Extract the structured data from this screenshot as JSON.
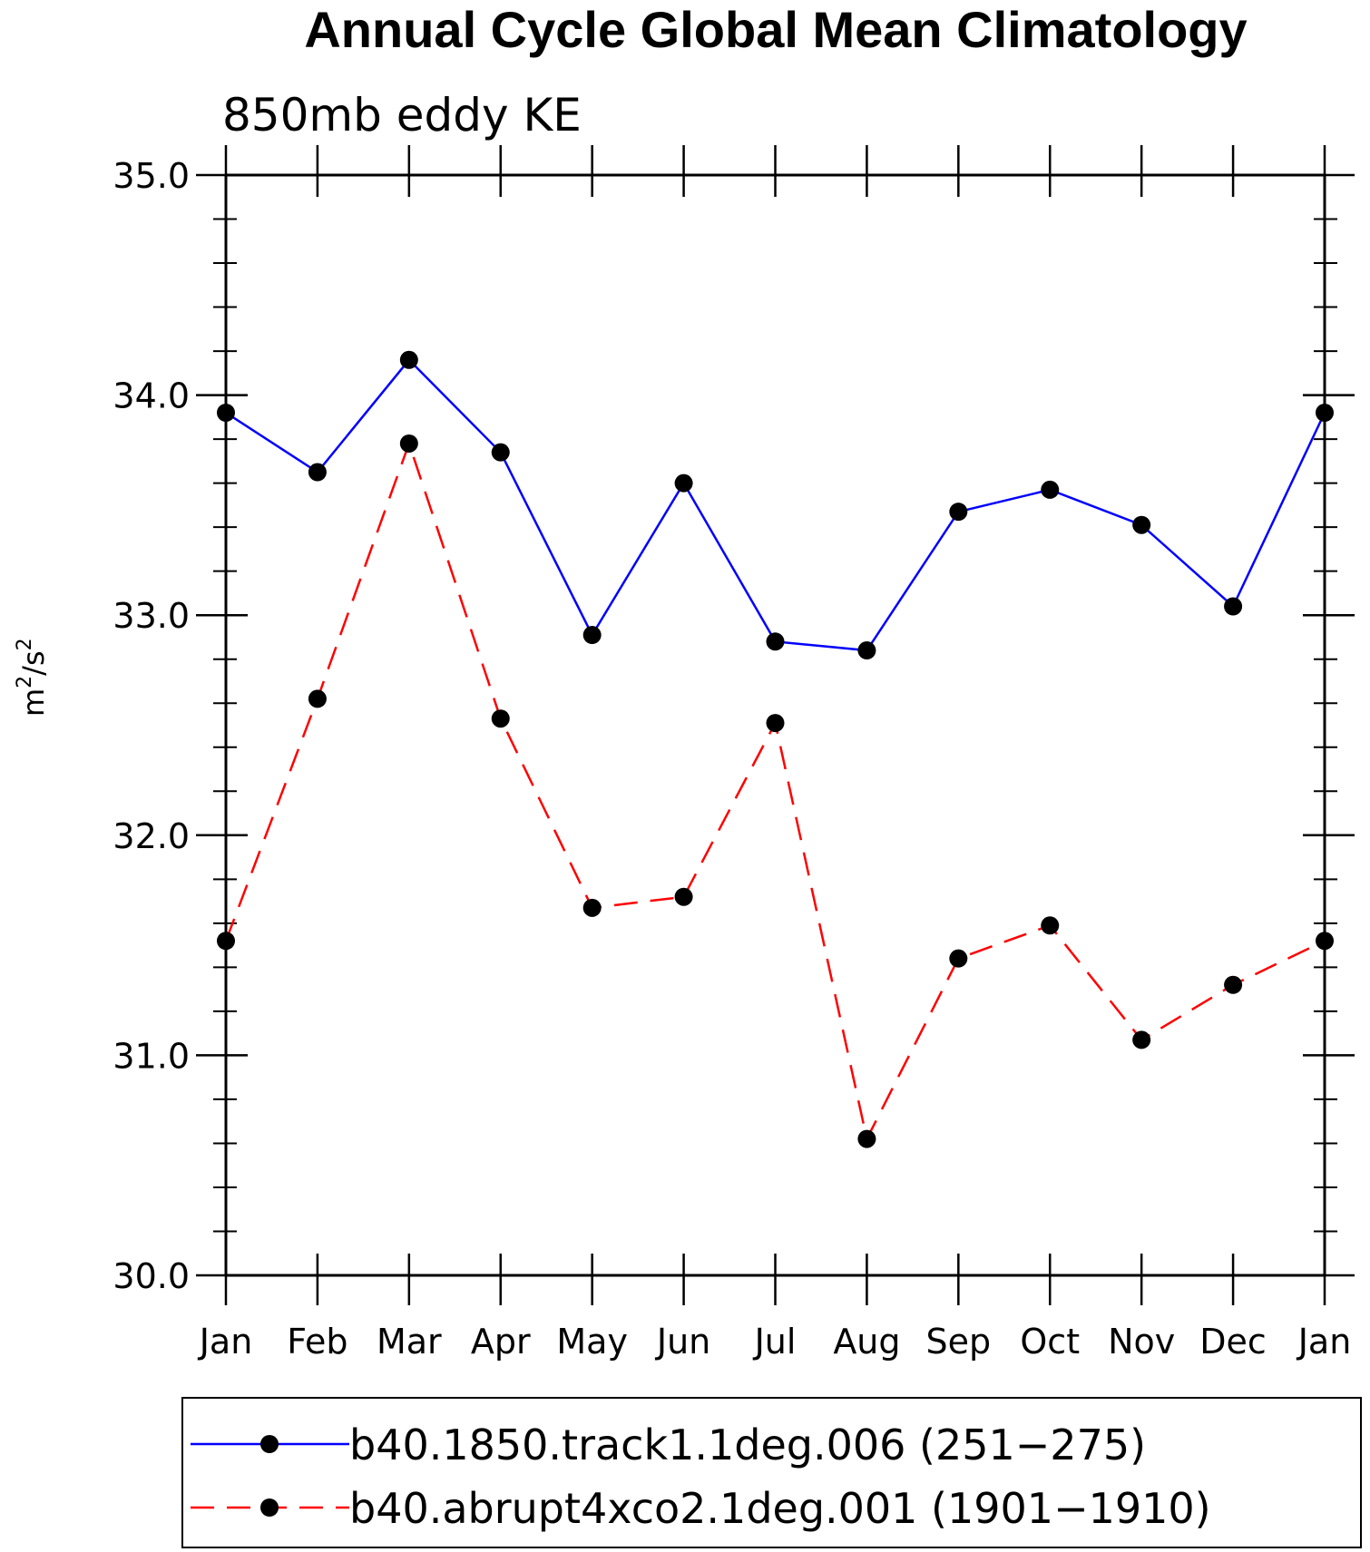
{
  "chart_data": {
    "type": "line",
    "title": "Annual Cycle Global Mean Climatology",
    "subtitle": "850mb eddy KE",
    "ylabel_base": "m",
    "ylabel_sup1": "2",
    "ylabel_mid": "/s",
    "ylabel_sup2": "2",
    "categories": [
      "Jan",
      "Feb",
      "Mar",
      "Apr",
      "May",
      "Jun",
      "Jul",
      "Aug",
      "Sep",
      "Oct",
      "Nov",
      "Dec",
      "Jan"
    ],
    "ylim": [
      30.0,
      35.0
    ],
    "yticks": [
      "30.0",
      "31.0",
      "32.0",
      "33.0",
      "34.0",
      "35.0"
    ],
    "grid": false,
    "legend_position": "bottom",
    "series": [
      {
        "name": "b40.1850.track1.1deg.006 (251−275)",
        "color": "#0000ff",
        "dash": "solid",
        "values": [
          33.92,
          33.65,
          34.16,
          33.74,
          32.91,
          33.6,
          32.88,
          32.84,
          33.47,
          33.57,
          33.41,
          33.04,
          33.92
        ]
      },
      {
        "name": "b40.abrupt4xco2.1deg.001 (1901−1910)",
        "color": "#ff0000",
        "dash": "dashed",
        "values": [
          31.52,
          32.62,
          33.78,
          32.53,
          31.67,
          31.72,
          32.51,
          30.62,
          31.44,
          31.59,
          31.07,
          31.32,
          31.52
        ]
      }
    ]
  }
}
